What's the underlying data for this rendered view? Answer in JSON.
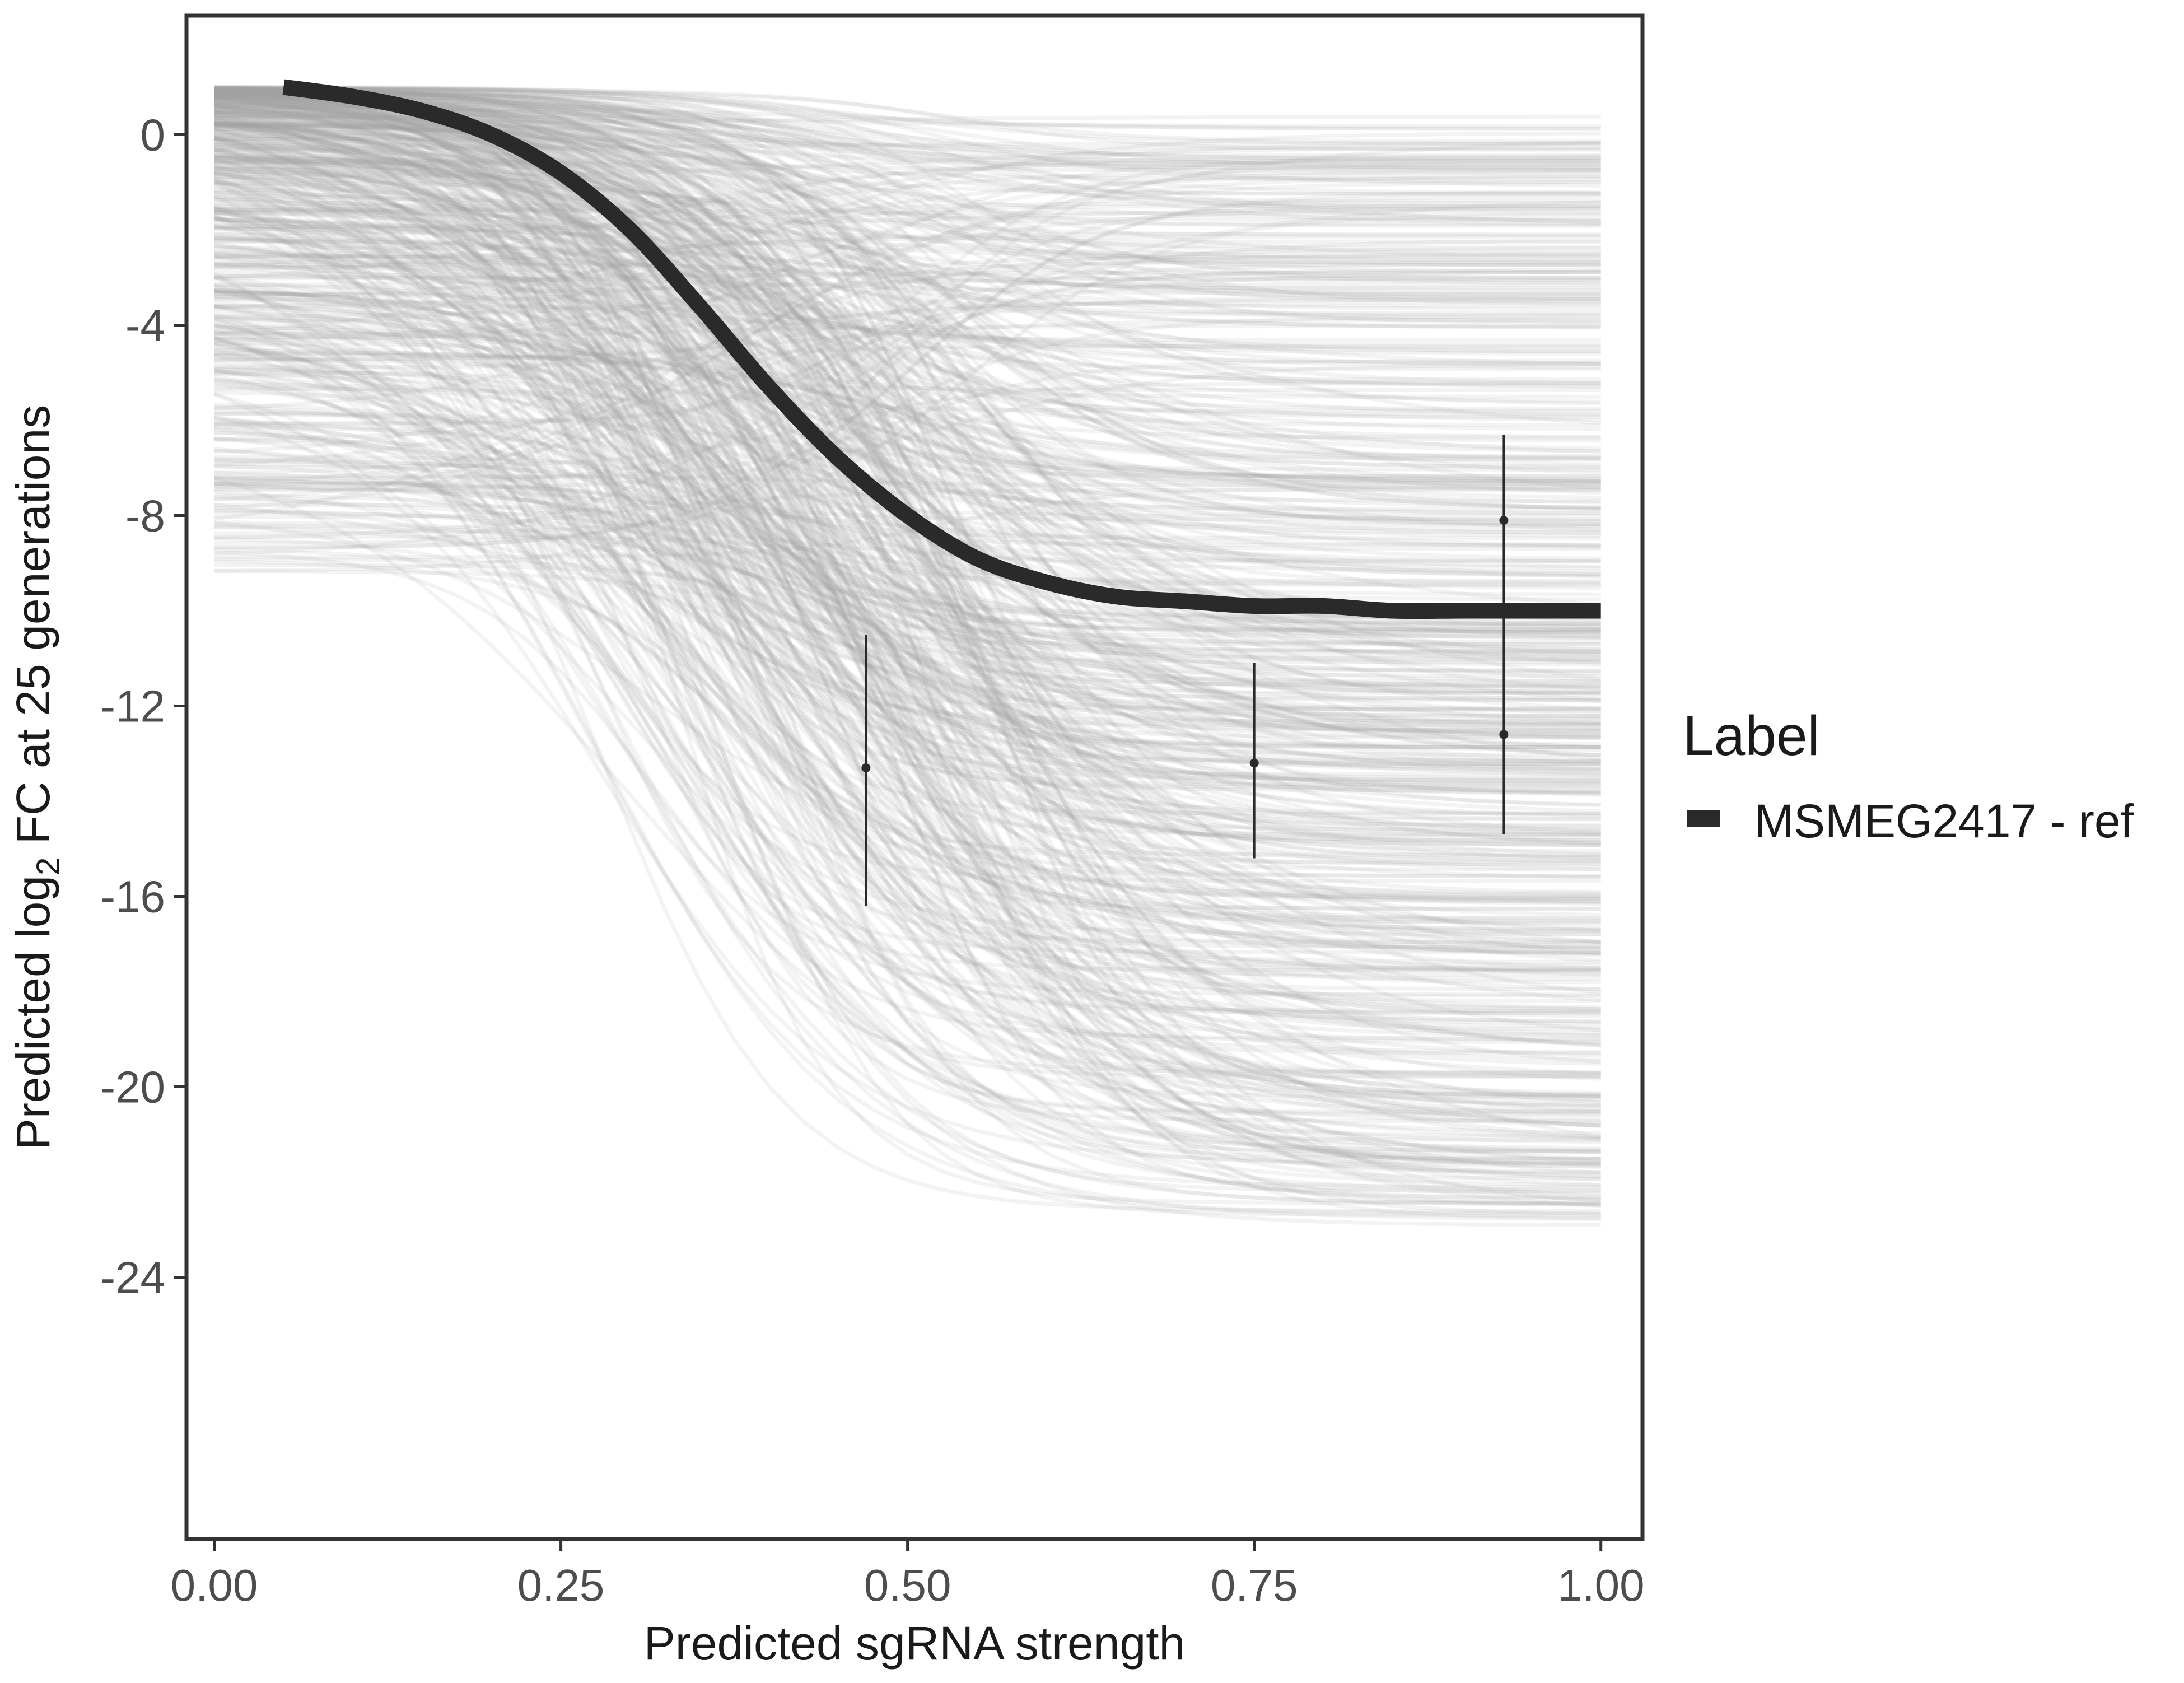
{
  "chart_data": {
    "type": "line",
    "xlabel": "Predicted sgRNA strength",
    "ylabel": {
      "prefix": "Predicted  log",
      "subscript": "2",
      "suffix": " FC at 25 generations"
    },
    "xlim": [
      -0.02,
      1.03
    ],
    "ylim": [
      -29.5,
      2.5
    ],
    "x_ticks": [
      0.0,
      0.25,
      0.5,
      0.75,
      1.0
    ],
    "x_tick_labels": [
      "0.00",
      "0.25",
      "0.50",
      "0.75",
      "1.00"
    ],
    "y_ticks": [
      0,
      -4,
      -8,
      -12,
      -16,
      -20,
      -24
    ],
    "y_tick_labels": [
      "0",
      "-4",
      "-8",
      "-12",
      "-16",
      "-20",
      "-24"
    ],
    "grid": false,
    "legend": {
      "title": "Label",
      "position": "right",
      "entries": [
        {
          "name": "MSMEG2417 - ref",
          "color": "#2a2a2a"
        }
      ]
    },
    "series": [
      {
        "name": "MSMEG2417 - ref",
        "color": "#2a2a2a",
        "x": [
          0.05,
          0.1,
          0.15,
          0.2,
          0.25,
          0.3,
          0.35,
          0.4,
          0.45,
          0.5,
          0.55,
          0.6,
          0.65,
          0.7,
          0.75,
          0.8,
          0.85,
          0.9,
          0.95,
          1.0
        ],
        "y": [
          1.0,
          0.8,
          0.5,
          0.0,
          -0.8,
          -2.0,
          -3.6,
          -5.3,
          -6.8,
          -8.0,
          -8.9,
          -9.4,
          -9.7,
          -9.8,
          -9.9,
          -9.9,
          -10.0,
          -10.0,
          -10.0,
          -10.0
        ]
      }
    ],
    "posterior_draws": {
      "color": "#a0a0a0",
      "count": 600,
      "x_range": [
        0.0,
        1.0
      ],
      "start_range": [
        -9.2,
        1.0
      ],
      "end_range": [
        -23.0,
        0.4
      ]
    },
    "observations": [
      {
        "x": 0.47,
        "y": -13.3,
        "lower": -16.2,
        "upper": -10.5
      },
      {
        "x": 0.75,
        "y": -13.2,
        "lower": -15.2,
        "upper": -11.1
      },
      {
        "x": 0.93,
        "y": -12.6,
        "lower": -14.7,
        "upper": -10.4
      },
      {
        "x": 0.93,
        "y": -8.1,
        "lower": -10.4,
        "upper": -6.3
      }
    ],
    "colors": {
      "axis": "#333333",
      "tick_text": "#4d4d4d",
      "error_bar": "#2a2a2a",
      "background": "#ffffff"
    }
  }
}
